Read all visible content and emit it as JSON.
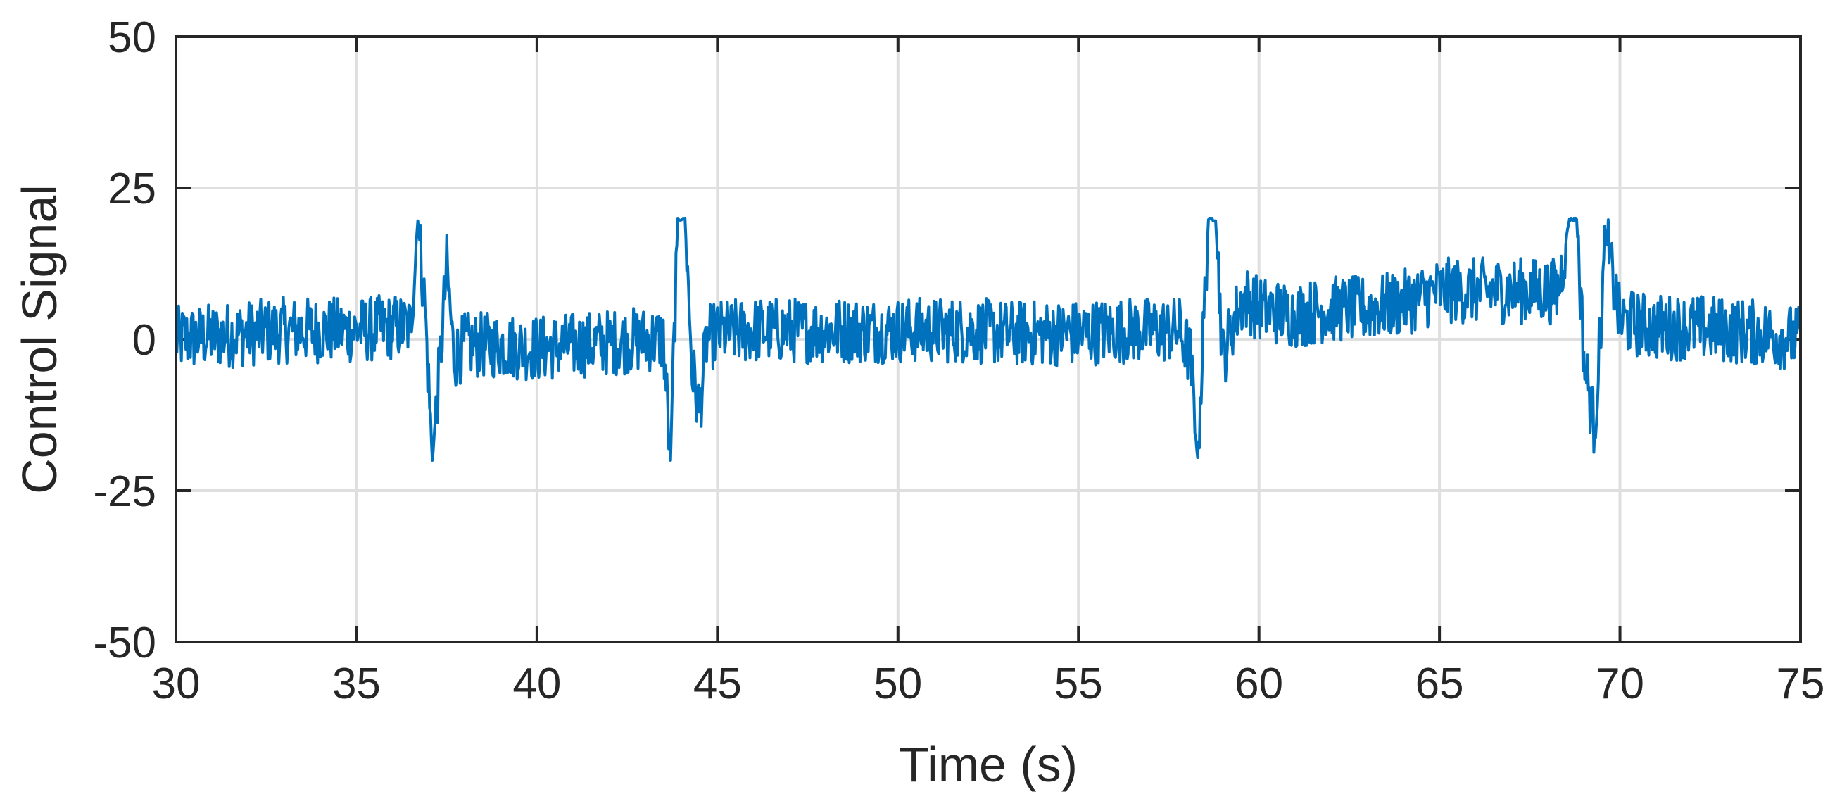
{
  "chart_data": {
    "type": "line",
    "title": "",
    "xlabel": "Time (s)",
    "ylabel": "Control Signal",
    "xlim": [
      30,
      75
    ],
    "ylim": [
      -50,
      50
    ],
    "xticks": [
      30,
      35,
      40,
      45,
      50,
      55,
      60,
      65,
      70,
      75
    ],
    "yticks": [
      -50,
      -25,
      0,
      25,
      50
    ],
    "xtick_labels": [
      "30",
      "35",
      "40",
      "45",
      "50",
      "55",
      "60",
      "65",
      "70",
      "75"
    ],
    "ytick_labels": [
      "-50",
      "-25",
      "0",
      "25",
      "50"
    ],
    "grid": true,
    "legend": "none",
    "series": [
      {
        "color": "#0072bd",
        "x": [
          30.0,
          31.0,
          32.0,
          33.0,
          34.0,
          35.0,
          36.0,
          36.5,
          36.7,
          36.9,
          37.1,
          37.3,
          37.5,
          37.7,
          38.0,
          39.0,
          40.0,
          41.0,
          42.0,
          43.0,
          43.5,
          43.7,
          43.9,
          44.1,
          44.3,
          44.5,
          44.7,
          45.0,
          46.0,
          47.0,
          48.0,
          49.0,
          50.0,
          51.0,
          52.0,
          53.0,
          54.0,
          55.0,
          56.0,
          57.0,
          57.8,
          58.1,
          58.3,
          58.6,
          58.8,
          59.0,
          59.3,
          59.6,
          60.0,
          61.0,
          62.0,
          63.0,
          64.0,
          65.0,
          66.0,
          67.0,
          68.0,
          68.3,
          68.6,
          68.8,
          69.0,
          69.3,
          69.6,
          70.0,
          71.0,
          72.0,
          73.0,
          74.0,
          75.0
        ],
        "y": [
          0,
          0.5,
          1,
          1.5,
          1.5,
          1.5,
          2,
          2,
          20,
          5,
          -20,
          -5,
          12,
          -3,
          -1,
          -1,
          -1.5,
          -1,
          -0.5,
          0,
          0,
          -20,
          20,
          20,
          -5,
          -12,
          0,
          1,
          1.5,
          1.5,
          1.5,
          1.5,
          1.5,
          1.5,
          1.5,
          1,
          1,
          1,
          1.5,
          1.5,
          1.5,
          -3,
          -20,
          20,
          20,
          -3,
          3,
          7,
          5,
          4,
          5,
          5,
          6,
          8,
          8,
          8,
          8,
          8,
          20,
          20,
          -3,
          -15,
          17,
          3,
          2,
          2,
          1.5,
          1,
          0
        ]
      }
    ]
  }
}
